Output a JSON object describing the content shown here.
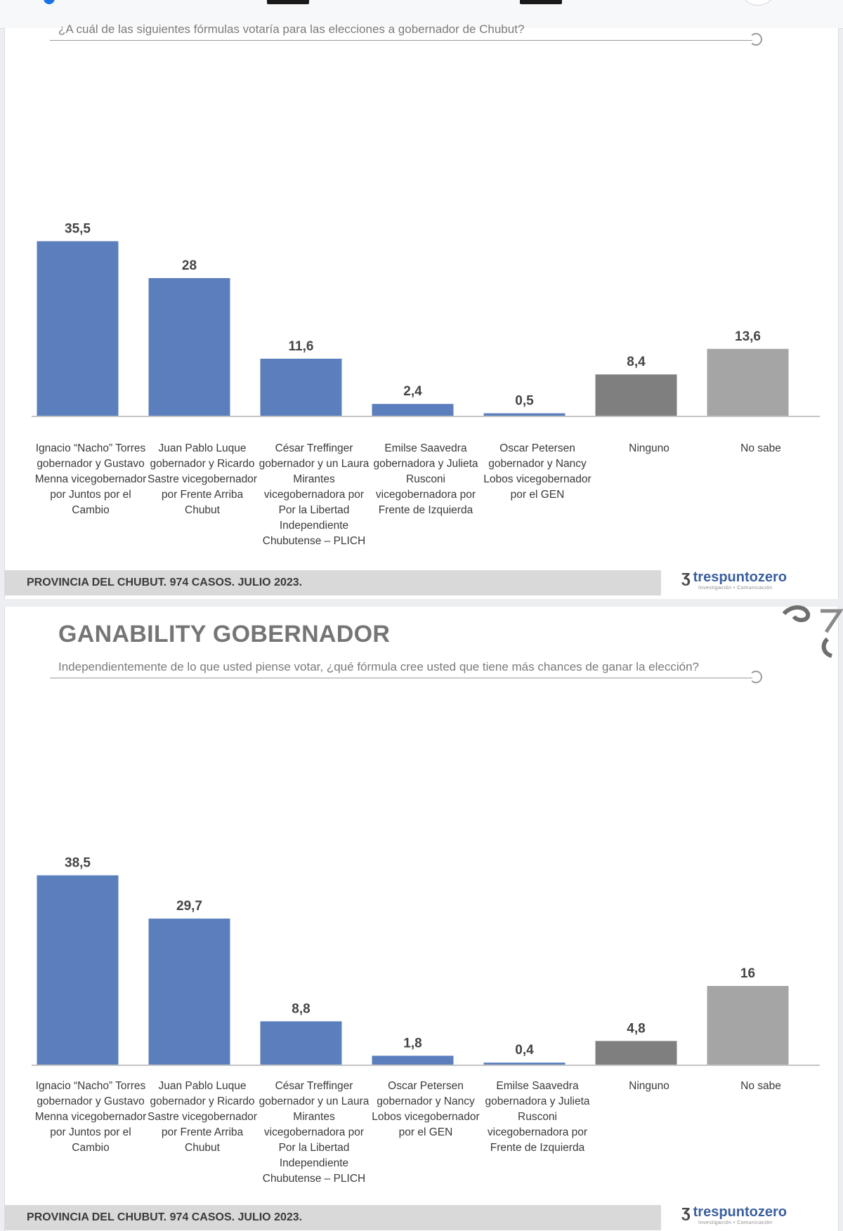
{
  "slides": [
    {
      "title": "",
      "question": "¿A cuál de las siguientes fórmulas votaría para las elecciones a gobernador de Chubut?",
      "footer": "PROVINCIA DEL CHUBUT. 974 CASOS. JULIO 2023.",
      "brand": "trespuntozero",
      "brand_tagline": "Investigación • Comunicación"
    },
    {
      "title": "GANABILITY GOBERNADOR",
      "question": "Independientemente de lo que usted piense votar, ¿qué fórmula cree usted que tiene más chances de ganar la elección?",
      "footer": "PROVINCIA DEL CHUBUT. 974 CASOS. JULIO 2023.",
      "brand": "trespuntozero",
      "brand_tagline": "Investigación • Comunicación"
    }
  ],
  "chart_data": [
    {
      "type": "bar",
      "title": "¿A cuál de las siguientes fórmulas votaría para las elecciones a gobernador de Chubut?",
      "categories": [
        "Ignacio “Nacho” Torres gobernador y Gustavo Menna vicegobernador por Juntos por el Cambio",
        "Juan Pablo Luque gobernador y Ricardo Sastre vicegobernador por Frente Arriba Chubut",
        "César Treffinger gobernador y un Laura Mirantes vicegobernadora por Por la Libertad Independiente Chubutense – PLICH",
        "Emilse Saavedra gobernadora y Julieta Rusconi vicegobernadora por Frente de Izquierda",
        "Oscar Petersen gobernador y Nancy Lobos vicegobernador por el GEN",
        "Ninguno",
        "No sabe"
      ],
      "values": [
        35.5,
        28,
        11.6,
        2.4,
        0.5,
        8.4,
        13.6
      ],
      "value_labels": [
        "35,5",
        "28",
        "11,6",
        "2,4",
        "0,5",
        "8,4",
        "13,6"
      ],
      "colors": [
        "#5b7fbc",
        "#5b7fbc",
        "#5b7fbc",
        "#5b7fbc",
        "#5b7fbc",
        "#7f7f7f",
        "#a5a5a5"
      ],
      "xlabel": "",
      "ylabel": "",
      "ylim": [
        0,
        40
      ]
    },
    {
      "type": "bar",
      "title": "GANABILITY GOBERNADOR",
      "categories": [
        "Ignacio “Nacho” Torres gobernador y Gustavo Menna vicegobernador por Juntos por el Cambio",
        "Juan Pablo Luque gobernador y Ricardo Sastre vicegobernador por Frente Arriba Chubut",
        "César Treffinger gobernador y un Laura Mirantes vicegobernadora por Por la Libertad Independiente Chubutense – PLICH",
        "Oscar Petersen gobernador y Nancy Lobos vicegobernador por el GEN",
        "Emilse Saavedra gobernadora y Julieta Rusconi vicegobernadora por Frente de Izquierda",
        "Ninguno",
        "No sabe"
      ],
      "values": [
        38.5,
        29.7,
        8.8,
        1.8,
        0.4,
        4.8,
        16
      ],
      "value_labels": [
        "38,5",
        "29,7",
        "8,8",
        "1,8",
        "0,4",
        "4,8",
        "16"
      ],
      "colors": [
        "#5b7fbc",
        "#5b7fbc",
        "#5b7fbc",
        "#5b7fbc",
        "#5b7fbc",
        "#7f7f7f",
        "#a5a5a5"
      ],
      "xlabel": "",
      "ylabel": "",
      "ylim": [
        0,
        40
      ]
    }
  ]
}
